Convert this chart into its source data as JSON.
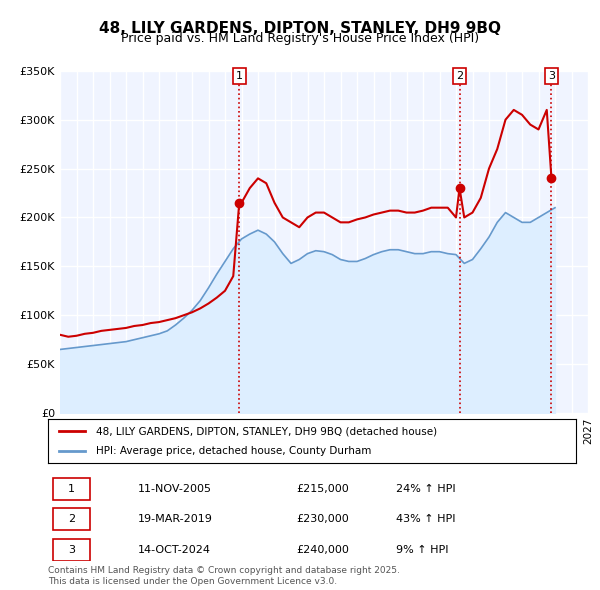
{
  "title": "48, LILY GARDENS, DIPTON, STANLEY, DH9 9BQ",
  "subtitle": "Price paid vs. HM Land Registry's House Price Index (HPI)",
  "legend_line1": "48, LILY GARDENS, DIPTON, STANLEY, DH9 9BQ (detached house)",
  "legend_line2": "HPI: Average price, detached house, County Durham",
  "transactions": [
    {
      "label": "1",
      "date": "2005-11-11",
      "price": 215000,
      "hpi_pct": "24%",
      "direction": "↑"
    },
    {
      "label": "2",
      "date": "2019-03-19",
      "price": 230000,
      "hpi_pct": "43%",
      "direction": "↑"
    },
    {
      "label": "3",
      "date": "2024-10-14",
      "price": 240000,
      "hpi_pct": "9%",
      "direction": "↑"
    }
  ],
  "transaction_dates_decimal": [
    2005.864,
    2019.214,
    2024.786
  ],
  "transaction_prices": [
    215000,
    230000,
    240000
  ],
  "footer": "Contains HM Land Registry data © Crown copyright and database right 2025.\nThis data is licensed under the Open Government Licence v3.0.",
  "house_color": "#cc0000",
  "hpi_color": "#6699cc",
  "hpi_fill_color": "#ddeeff",
  "ylim": [
    0,
    350000
  ],
  "xlim_start": 1995.0,
  "xlim_end": 2027.0,
  "background_color": "#ffffff",
  "plot_bg_color": "#f0f4ff",
  "grid_color": "#ffffff",
  "vline_color": "#cc0000",
  "vline_style": ":",
  "house_data_x": [
    1995.0,
    1995.5,
    1996.0,
    1996.5,
    1997.0,
    1997.5,
    1998.0,
    1998.5,
    1999.0,
    1999.5,
    2000.0,
    2000.5,
    2001.0,
    2001.5,
    2002.0,
    2002.5,
    2003.0,
    2003.5,
    2004.0,
    2004.5,
    2005.0,
    2005.5,
    2005.864,
    2006.0,
    2006.5,
    2007.0,
    2007.5,
    2008.0,
    2008.5,
    2009.0,
    2009.5,
    2010.0,
    2010.5,
    2011.0,
    2011.5,
    2012.0,
    2012.5,
    2013.0,
    2013.5,
    2014.0,
    2014.5,
    2015.0,
    2015.5,
    2016.0,
    2016.5,
    2017.0,
    2017.5,
    2018.0,
    2018.5,
    2019.0,
    2019.214,
    2019.5,
    2020.0,
    2020.5,
    2021.0,
    2021.5,
    2022.0,
    2022.5,
    2023.0,
    2023.5,
    2024.0,
    2024.5,
    2024.786
  ],
  "house_data_y": [
    80000,
    78000,
    79000,
    81000,
    82000,
    84000,
    85000,
    86000,
    87000,
    89000,
    90000,
    92000,
    93000,
    95000,
    97000,
    100000,
    103000,
    107000,
    112000,
    118000,
    125000,
    140000,
    215000,
    215000,
    230000,
    240000,
    235000,
    215000,
    200000,
    195000,
    190000,
    200000,
    205000,
    205000,
    200000,
    195000,
    195000,
    198000,
    200000,
    203000,
    205000,
    207000,
    207000,
    205000,
    205000,
    207000,
    210000,
    210000,
    210000,
    200000,
    230000,
    200000,
    205000,
    220000,
    250000,
    270000,
    300000,
    310000,
    305000,
    295000,
    290000,
    310000,
    240000
  ],
  "hpi_data_x": [
    1995.0,
    1995.5,
    1996.0,
    1996.5,
    1997.0,
    1997.5,
    1998.0,
    1998.5,
    1999.0,
    1999.5,
    2000.0,
    2000.5,
    2001.0,
    2001.5,
    2002.0,
    2002.5,
    2003.0,
    2003.5,
    2004.0,
    2004.5,
    2005.0,
    2005.5,
    2006.0,
    2006.5,
    2007.0,
    2007.5,
    2008.0,
    2008.5,
    2009.0,
    2009.5,
    2010.0,
    2010.5,
    2011.0,
    2011.5,
    2012.0,
    2012.5,
    2013.0,
    2013.5,
    2014.0,
    2014.5,
    2015.0,
    2015.5,
    2016.0,
    2016.5,
    2017.0,
    2017.5,
    2018.0,
    2018.5,
    2019.0,
    2019.5,
    2020.0,
    2020.5,
    2021.0,
    2021.5,
    2022.0,
    2022.5,
    2023.0,
    2023.5,
    2024.0,
    2024.5,
    2025.0
  ],
  "hpi_data_y": [
    65000,
    66000,
    67000,
    68000,
    69000,
    70000,
    71000,
    72000,
    73000,
    75000,
    77000,
    79000,
    81000,
    84000,
    90000,
    97000,
    105000,
    115000,
    128000,
    142000,
    155000,
    168000,
    178000,
    183000,
    187000,
    183000,
    175000,
    163000,
    153000,
    157000,
    163000,
    166000,
    165000,
    162000,
    157000,
    155000,
    155000,
    158000,
    162000,
    165000,
    167000,
    167000,
    165000,
    163000,
    163000,
    165000,
    165000,
    163000,
    162000,
    153000,
    157000,
    168000,
    180000,
    195000,
    205000,
    200000,
    195000,
    195000,
    200000,
    205000,
    210000
  ]
}
